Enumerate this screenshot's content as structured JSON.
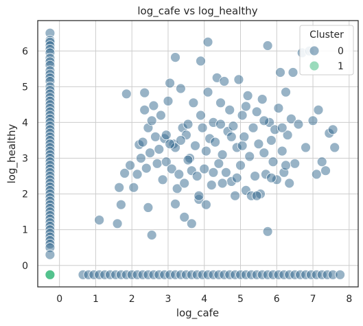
{
  "chart_data": {
    "type": "scatter",
    "title": "log_cafe vs log_healthy",
    "xlabel": "log_cafe",
    "ylabel": "log_healthy",
    "xlim": [
      -0.6,
      8.25
    ],
    "ylim": [
      -0.6,
      6.85
    ],
    "xticks": [
      0,
      1,
      2,
      3,
      4,
      5,
      6,
      7,
      8
    ],
    "yticks": [
      0,
      1,
      2,
      3,
      4,
      5,
      6
    ],
    "grid": true,
    "legend": {
      "title": "Cluster",
      "placement": "top-right"
    },
    "series": [
      {
        "name": "0",
        "color": "#31688e",
        "points": [
          [
            -0.26,
            6.5
          ],
          [
            -0.26,
            6.3
          ],
          [
            -0.26,
            6.25
          ],
          [
            -0.26,
            6.15
          ],
          [
            -0.26,
            6.05
          ],
          [
            -0.26,
            5.95
          ],
          [
            -0.26,
            5.8
          ],
          [
            -0.26,
            5.7
          ],
          [
            -0.26,
            5.6
          ],
          [
            -0.26,
            5.45
          ],
          [
            -0.26,
            5.35
          ],
          [
            -0.26,
            5.25
          ],
          [
            -0.26,
            5.15
          ],
          [
            -0.26,
            5.0
          ],
          [
            -0.26,
            4.9
          ],
          [
            -0.26,
            4.8
          ],
          [
            -0.26,
            4.7
          ],
          [
            -0.26,
            4.6
          ],
          [
            -0.26,
            4.5
          ],
          [
            -0.26,
            4.4
          ],
          [
            -0.26,
            4.3
          ],
          [
            -0.26,
            4.2
          ],
          [
            -0.26,
            4.1
          ],
          [
            -0.26,
            4.0
          ],
          [
            -0.26,
            3.9
          ],
          [
            -0.26,
            3.8
          ],
          [
            -0.26,
            3.7
          ],
          [
            -0.26,
            3.6
          ],
          [
            -0.26,
            3.5
          ],
          [
            -0.26,
            3.4
          ],
          [
            -0.26,
            3.3
          ],
          [
            -0.26,
            3.2
          ],
          [
            -0.26,
            3.1
          ],
          [
            -0.26,
            3.0
          ],
          [
            -0.26,
            2.9
          ],
          [
            -0.26,
            2.8
          ],
          [
            -0.26,
            2.7
          ],
          [
            -0.26,
            2.6
          ],
          [
            -0.26,
            2.5
          ],
          [
            -0.26,
            2.4
          ],
          [
            -0.26,
            2.3
          ],
          [
            -0.26,
            2.2
          ],
          [
            -0.26,
            2.1
          ],
          [
            -0.26,
            2.0
          ],
          [
            -0.26,
            1.9
          ],
          [
            -0.26,
            1.8
          ],
          [
            -0.26,
            1.7
          ],
          [
            -0.26,
            1.6
          ],
          [
            -0.26,
            1.5
          ],
          [
            -0.26,
            1.4
          ],
          [
            -0.26,
            1.3
          ],
          [
            -0.26,
            1.2
          ],
          [
            -0.26,
            1.1
          ],
          [
            -0.26,
            1.0
          ],
          [
            -0.26,
            0.9
          ],
          [
            -0.26,
            0.8
          ],
          [
            -0.26,
            0.7
          ],
          [
            -0.26,
            0.6
          ],
          [
            -0.26,
            0.5
          ],
          [
            -0.26,
            0.3
          ],
          [
            0.65,
            -0.26
          ],
          [
            0.8,
            -0.26
          ],
          [
            0.95,
            -0.26
          ],
          [
            1.1,
            -0.26
          ],
          [
            1.25,
            -0.26
          ],
          [
            1.4,
            -0.26
          ],
          [
            1.55,
            -0.26
          ],
          [
            1.7,
            -0.26
          ],
          [
            1.85,
            -0.26
          ],
          [
            2.0,
            -0.26
          ],
          [
            2.15,
            -0.26
          ],
          [
            2.3,
            -0.26
          ],
          [
            2.45,
            -0.26
          ],
          [
            2.6,
            -0.26
          ],
          [
            2.75,
            -0.26
          ],
          [
            2.9,
            -0.26
          ],
          [
            3.05,
            -0.26
          ],
          [
            3.2,
            -0.26
          ],
          [
            3.35,
            -0.26
          ],
          [
            3.5,
            -0.26
          ],
          [
            3.65,
            -0.26
          ],
          [
            3.8,
            -0.26
          ],
          [
            3.95,
            -0.26
          ],
          [
            4.1,
            -0.26
          ],
          [
            4.25,
            -0.26
          ],
          [
            4.4,
            -0.26
          ],
          [
            4.55,
            -0.26
          ],
          [
            4.7,
            -0.26
          ],
          [
            4.85,
            -0.26
          ],
          [
            5.0,
            -0.26
          ],
          [
            5.15,
            -0.26
          ],
          [
            5.3,
            -0.26
          ],
          [
            5.45,
            -0.26
          ],
          [
            5.6,
            -0.26
          ],
          [
            5.75,
            -0.26
          ],
          [
            5.9,
            -0.26
          ],
          [
            6.05,
            -0.26
          ],
          [
            6.2,
            -0.26
          ],
          [
            6.35,
            -0.26
          ],
          [
            6.5,
            -0.26
          ],
          [
            6.65,
            -0.26
          ],
          [
            6.8,
            -0.26
          ],
          [
            6.95,
            -0.26
          ],
          [
            7.1,
            -0.26
          ],
          [
            7.25,
            -0.26
          ],
          [
            7.4,
            -0.26
          ],
          [
            7.55,
            -0.26
          ],
          [
            7.75,
            -0.26
          ],
          [
            1.1,
            1.27
          ],
          [
            1.6,
            1.17
          ],
          [
            1.7,
            1.7
          ],
          [
            1.65,
            2.18
          ],
          [
            1.8,
            2.58
          ],
          [
            1.85,
            4.8
          ],
          [
            1.95,
            2.8
          ],
          [
            2.05,
            2.18
          ],
          [
            2.15,
            2.55
          ],
          [
            2.2,
            3.38
          ],
          [
            2.25,
            3.0
          ],
          [
            2.3,
            3.45
          ],
          [
            2.35,
            4.35
          ],
          [
            2.35,
            4.83
          ],
          [
            2.4,
            2.72
          ],
          [
            2.45,
            3.85
          ],
          [
            2.5,
            3.15
          ],
          [
            2.55,
            4.05
          ],
          [
            2.6,
            4.47
          ],
          [
            2.65,
            3.6
          ],
          [
            2.7,
            2.85
          ],
          [
            2.75,
            3.25
          ],
          [
            2.8,
            4.2
          ],
          [
            2.85,
            2.4
          ],
          [
            2.9,
            3.55
          ],
          [
            2.95,
            2.9
          ],
          [
            3.0,
            4.6
          ],
          [
            3.05,
            5.1
          ],
          [
            3.1,
            2.7
          ],
          [
            3.15,
            3.4
          ],
          [
            3.2,
            5.82
          ],
          [
            3.2,
            3.3
          ],
          [
            3.25,
            2.15
          ],
          [
            3.3,
            2.55
          ],
          [
            3.35,
            4.95
          ],
          [
            3.4,
            3.85
          ],
          [
            3.45,
            2.3
          ],
          [
            3.5,
            3.65
          ],
          [
            3.55,
            3.95
          ],
          [
            3.6,
            3.0
          ],
          [
            3.65,
            2.65
          ],
          [
            3.7,
            4.55
          ],
          [
            3.75,
            3.35
          ],
          [
            3.8,
            2.5
          ],
          [
            3.85,
            1.85
          ],
          [
            3.9,
            4.2
          ],
          [
            3.9,
            5.72
          ],
          [
            3.95,
            3.85
          ],
          [
            4.0,
            2.7
          ],
          [
            4.05,
            3.2
          ],
          [
            4.1,
            4.85
          ],
          [
            4.1,
            6.25
          ],
          [
            4.15,
            3.55
          ],
          [
            4.2,
            2.25
          ],
          [
            4.25,
            4.0
          ],
          [
            4.3,
            3.45
          ],
          [
            4.35,
            5.25
          ],
          [
            4.4,
            2.85
          ],
          [
            4.45,
            4.55
          ],
          [
            4.5,
            3.1
          ],
          [
            4.55,
            5.15
          ],
          [
            4.6,
            2.6
          ],
          [
            4.65,
            3.75
          ],
          [
            4.7,
            4.35
          ],
          [
            4.75,
            2.35
          ],
          [
            4.8,
            3.9
          ],
          [
            4.85,
            1.95
          ],
          [
            4.9,
            3.3
          ],
          [
            4.95,
            5.2
          ],
          [
            5.0,
            2.8
          ],
          [
            5.05,
            4.2
          ],
          [
            5.1,
            3.6
          ],
          [
            5.15,
            2.1
          ],
          [
            5.2,
            4.75
          ],
          [
            5.25,
            3.05
          ],
          [
            5.3,
            1.95
          ],
          [
            5.35,
            3.85
          ],
          [
            5.4,
            2.5
          ],
          [
            5.45,
            4.3
          ],
          [
            5.5,
            3.4
          ],
          [
            5.55,
            2.0
          ],
          [
            5.6,
            4.65
          ],
          [
            5.65,
            3.15
          ],
          [
            5.7,
            2.55
          ],
          [
            5.75,
            0.95
          ],
          [
            5.75,
            6.15
          ],
          [
            5.8,
            4.0
          ],
          [
            5.85,
            3.5
          ],
          [
            5.9,
            2.9
          ],
          [
            5.95,
            3.8
          ],
          [
            6.0,
            2.4
          ],
          [
            6.05,
            4.4
          ],
          [
            6.1,
            5.4
          ],
          [
            6.15,
            3.2
          ],
          [
            6.2,
            2.6
          ],
          [
            6.25,
            4.85
          ],
          [
            6.3,
            3.65
          ],
          [
            6.35,
            2.3
          ],
          [
            6.4,
            4.1
          ],
          [
            6.45,
            5.4
          ],
          [
            6.5,
            2.85
          ],
          [
            6.6,
            3.95
          ],
          [
            6.7,
            5.95
          ],
          [
            6.8,
            3.3
          ],
          [
            6.9,
            6.0
          ],
          [
            7.0,
            4.05
          ],
          [
            7.1,
            2.55
          ],
          [
            7.15,
            4.35
          ],
          [
            7.25,
            2.9
          ],
          [
            7.35,
            2.65
          ],
          [
            7.45,
            3.7
          ],
          [
            7.55,
            3.8
          ],
          [
            7.6,
            3.3
          ],
          [
            2.45,
            1.62
          ],
          [
            2.55,
            0.85
          ],
          [
            3.2,
            1.72
          ],
          [
            3.45,
            1.35
          ],
          [
            3.65,
            1.17
          ],
          [
            3.85,
            1.95
          ],
          [
            4.05,
            1.7
          ],
          [
            4.5,
            2.3
          ],
          [
            4.9,
            2.45
          ],
          [
            5.45,
            1.95
          ],
          [
            3.05,
            3.4
          ],
          [
            3.55,
            2.95
          ],
          [
            4.25,
            2.6
          ],
          [
            4.75,
            3.6
          ],
          [
            5.15,
            4.45
          ],
          [
            5.65,
            4.05
          ],
          [
            6.15,
            3.85
          ],
          [
            2.95,
            3.65
          ],
          [
            3.35,
            3.5
          ],
          [
            4.45,
            3.95
          ],
          [
            5.05,
            3.35
          ],
          [
            5.85,
            2.45
          ],
          [
            6.25,
            2.8
          ]
        ]
      },
      {
        "name": "1",
        "color": "#35b779",
        "points": [
          [
            -0.26,
            -0.26
          ]
        ]
      }
    ]
  }
}
